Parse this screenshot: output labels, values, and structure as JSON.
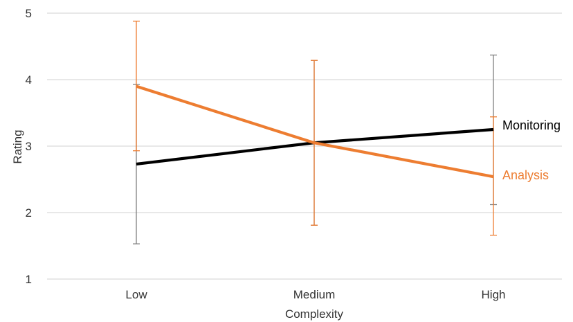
{
  "chart_data": {
    "type": "line",
    "title": "",
    "xlabel": "Complexity",
    "ylabel": "Rating",
    "categories": [
      "Low",
      "Medium",
      "High"
    ],
    "ylim": [
      1,
      5
    ],
    "yticks": [
      "1",
      "2",
      "3",
      "4",
      "5"
    ],
    "grid": "horizontal",
    "legend": "direct labels at right end of lines",
    "series": [
      {
        "name": "Monitoring",
        "color": "#000000",
        "values": [
          2.73,
          3.05,
          3.25
        ],
        "error_low": [
          1.53,
          1.81,
          2.12
        ],
        "error_high": [
          3.93,
          4.29,
          4.37
        ],
        "error_color": "#7f7f7f"
      },
      {
        "name": "Analysis",
        "color": "#ed7d31",
        "values": [
          3.9,
          3.05,
          2.54
        ],
        "error_low": [
          2.93,
          1.81,
          1.66
        ],
        "error_high": [
          4.88,
          4.29,
          3.44
        ],
        "error_color": "#ed7d31"
      }
    ]
  }
}
